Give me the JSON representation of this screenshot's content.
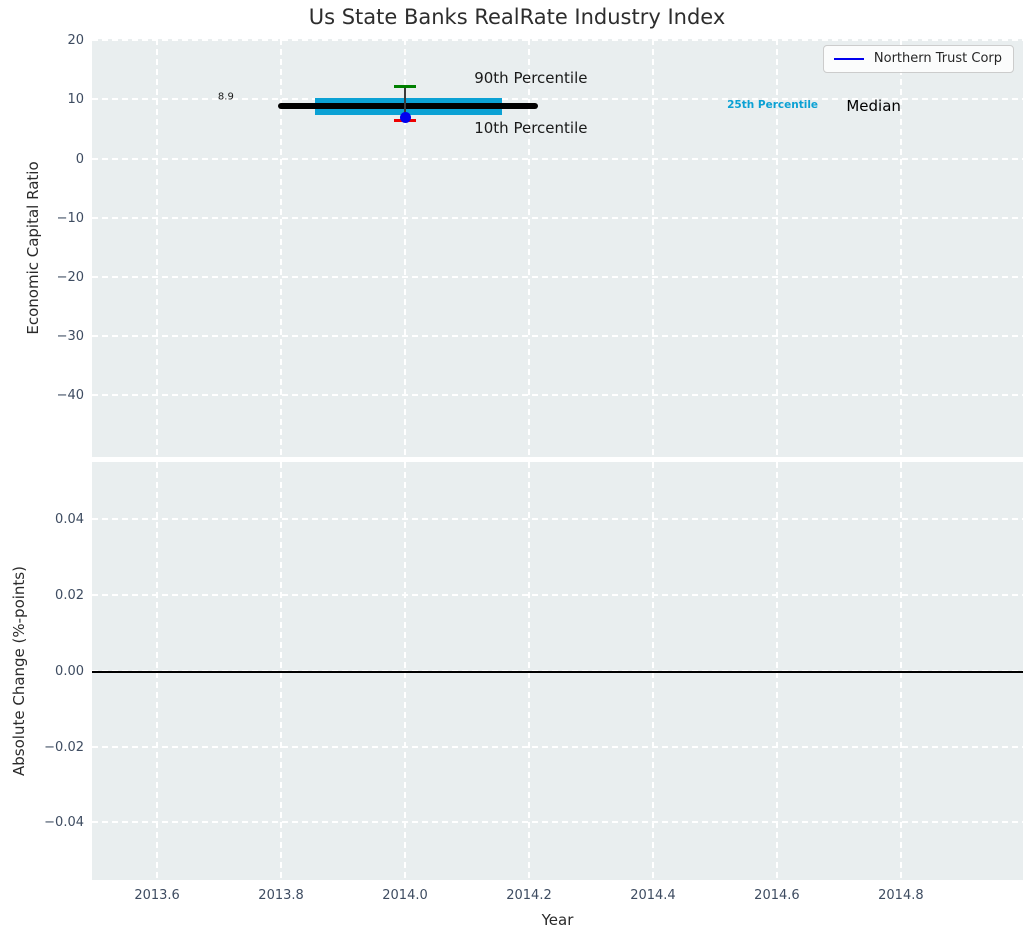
{
  "chart_data": {
    "type": "line",
    "title": "Us State Banks RealRate Industry Index",
    "xlabel": "Year",
    "xlim": [
      2013.495,
      2014.997
    ],
    "xticks": [
      2013.6,
      2013.8,
      2014.0,
      2014.2,
      2014.4,
      2014.6,
      2014.8
    ],
    "xtick_labels": [
      "2013.6",
      "2013.8",
      "2014.0",
      "2014.2",
      "2014.4",
      "2014.6",
      "2014.8"
    ],
    "grid": true,
    "legend": {
      "label": "Northern Trust Corp",
      "line_color": "#0000ee",
      "position": "upper right"
    },
    "panels": [
      {
        "name": "industry-index",
        "ylabel": "Economic Capital Ratio",
        "ylim": [
          -50.4,
          20.2
        ],
        "yticks": [
          20,
          10,
          0,
          -10,
          -20,
          -30,
          -40
        ],
        "ytick_labels": [
          "20",
          "10",
          "0",
          "−10",
          "−20",
          "−30",
          "−40"
        ],
        "marks": {
          "median_line": {
            "label": "Median",
            "y": 8.9,
            "x_start": 2013.8,
            "x_end": 2014.21,
            "color": "#000000"
          },
          "iqr_band": {
            "label": "25th Percentile",
            "x_start": 2013.855,
            "x_end": 2014.157,
            "y_low": 7.3,
            "y_high": 10.2,
            "color": "#0ba1d4"
          },
          "errorbar": {
            "series": "Northern Trust Corp",
            "x": 2014.0,
            "point_y": 6.9,
            "y_high": 12.2,
            "y_low": 6.5,
            "point_color": "#0000ee",
            "cap_high_color": "#008000",
            "cap_low_color": "#ee0000",
            "stem_color": "#3a3a3a"
          }
        },
        "annotations": [
          {
            "name": "median-value-label",
            "text": "8.9",
            "x": 2013.711,
            "y": 10.47,
            "color": "#1a1a1a",
            "size": 10,
            "weight": "normal"
          },
          {
            "name": "annotation-90th-percentile",
            "text": "90th Percentile",
            "x": 2014.203,
            "y": 13.68,
            "color": "#1a1a1a",
            "size": 15,
            "weight": "normal"
          },
          {
            "name": "annotation-10th-percentile",
            "text": "10th Percentile",
            "x": 2014.203,
            "y": 5.24,
            "color": "#1a1a1a",
            "size": 15,
            "weight": "normal"
          },
          {
            "name": "annotation-25th-percentile",
            "text": "25th Percentile",
            "x": 2014.593,
            "y": 9.04,
            "color": "#0ba1d4",
            "size": 10.5,
            "weight": "bold"
          },
          {
            "name": "annotation-median",
            "text": "Median",
            "x": 2014.756,
            "y": 8.87,
            "color": "#000000",
            "size": 15,
            "weight": "normal"
          }
        ]
      },
      {
        "name": "absolute-change",
        "ylabel": "Absolute Change (%-points)",
        "ylim": [
          -0.0552,
          0.0551
        ],
        "yticks": [
          0.04,
          0.02,
          0.0,
          -0.02,
          -0.04
        ],
        "ytick_labels": [
          "0.04",
          "0.02",
          "0.00",
          "−0.02",
          "−0.04"
        ],
        "zero_line": {
          "y": 0.0,
          "color": "#000000"
        }
      }
    ],
    "style": {
      "plot_background": "#e9eeef",
      "gridline_color": "#ffffff",
      "tick_label_color": "#3e4c61"
    }
  }
}
